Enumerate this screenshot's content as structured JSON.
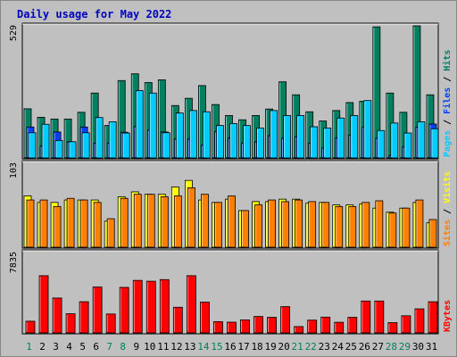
{
  "chart_data": {
    "title": "Daily usage for May 2022",
    "type": "bar",
    "categories": [
      "1",
      "2",
      "3",
      "4",
      "5",
      "6",
      "7",
      "8",
      "9",
      "10",
      "11",
      "12",
      "13",
      "14",
      "15",
      "16",
      "17",
      "18",
      "19",
      "20",
      "21",
      "22",
      "23",
      "24",
      "25",
      "26",
      "27",
      "28",
      "29",
      "30",
      "31"
    ],
    "weekend_days": [
      "1",
      "7",
      "8",
      "14",
      "15",
      "21",
      "22",
      "28",
      "29"
    ],
    "panels": [
      {
        "name": "hits-files-pages",
        "ymax_label": "529",
        "legend": [
          "Pages",
          "Files",
          "Hits"
        ],
        "series": [
          {
            "name": "Hits",
            "color": "#008060",
            "values": [
              197,
              163,
              156,
              156,
              183,
              260,
              130,
              310,
              337,
              302,
              313,
              210,
              239,
              290,
              214,
              170,
              153,
              170,
              196,
              305,
              253,
              185,
              148,
              190,
              222,
              227,
              525,
              260,
              183,
              529,
              253
            ]
          },
          {
            "name": "Files",
            "color": "#0040ff",
            "values": [
              124,
              48,
              104,
              65,
              124,
              60,
              60,
              103,
              126,
              112,
              104,
              76,
              76,
              52,
              106,
              80,
              60,
              65,
              90,
              79,
              86,
              60,
              40,
              80,
              92,
              124,
              80,
              10,
              45,
              124,
              136
            ]
          },
          {
            "name": "Pages",
            "color": "#00ccff",
            "values": [
              101,
              135,
              70,
              65,
              101,
              162,
              145,
              100,
              270,
              260,
              101,
              180,
              190,
              185,
              130,
              138,
              130,
              120,
              190,
              170,
              170,
              125,
              120,
              160,
              170,
              230,
              110,
              140,
              100,
              145,
              117
            ]
          }
        ]
      },
      {
        "name": "visits-sites",
        "ymax_label": "103",
        "legend": [
          "Sites",
          "Visits"
        ],
        "series": [
          {
            "name": "Visits",
            "color": "#ffff00",
            "values": [
              63,
              55,
              55,
              58,
              58,
              58,
              32,
              62,
              68,
              65,
              65,
              74,
              82,
              58,
              55,
              59,
              45,
              56,
              56,
              59,
              59,
              54,
              55,
              52,
              52,
              53,
              48,
              43,
              48,
              55,
              30
            ]
          },
          {
            "name": "Sites",
            "color": "#ff8000",
            "values": [
              58,
              58,
              50,
              60,
              58,
              55,
              35,
              60,
              65,
              65,
              62,
              63,
              73,
              65,
              55,
              63,
              45,
              52,
              58,
              56,
              58,
              56,
              55,
              50,
              50,
              55,
              57,
              42,
              48,
              58,
              34
            ]
          }
        ]
      },
      {
        "name": "kbytes",
        "ymax_label": "7835",
        "legend": [
          "KBytes"
        ],
        "series": [
          {
            "name": "KBytes",
            "color": "#ff0000",
            "values": [
              1138,
              5580,
              3400,
              1868,
              3043,
              4475,
              1843,
              4440,
              5123,
              5040,
              5200,
              2500,
              5580,
              3000,
              1100,
              1045,
              1270,
              1600,
              1520,
              2560,
              617,
              1245,
              1540,
              1035,
              1520,
              3111,
              3111,
              1000,
              1670,
              2346,
              3040
            ]
          }
        ]
      }
    ]
  }
}
